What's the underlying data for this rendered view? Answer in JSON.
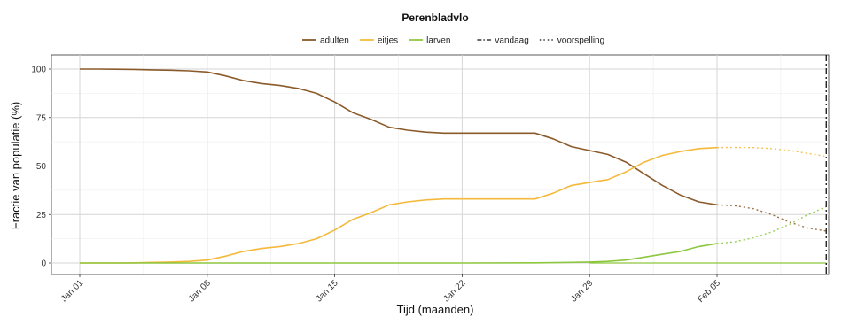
{
  "chart_data": {
    "type": "line",
    "title": "Perenbladvlo",
    "xlabel": "Tijd (maanden)",
    "ylabel": "Fractie van populatie (%)",
    "ylim": [
      0,
      100
    ],
    "xlim": [
      "2024-01-01",
      "2024-02-12"
    ],
    "grid": true,
    "legend_position": "top",
    "x_ticks": [
      "2024-01-01",
      "2024-01-08",
      "2024-01-15",
      "2024-01-22",
      "2024-01-29",
      "2024-02-05"
    ],
    "x_tick_labels": [
      "Jan 01",
      "Jan 08",
      "Jan 15",
      "Jan 22",
      "Jan 29",
      "Feb 05"
    ],
    "y_ticks": [
      0,
      25,
      50,
      75,
      100
    ],
    "y_tick_labels": [
      "0",
      "25",
      "50",
      "75",
      "100"
    ],
    "today": "2024-02-11",
    "series": [
      {
        "name": "adulten",
        "color": "#8B5A2B",
        "observed": [
          [
            "2024-01-01",
            100
          ],
          [
            "2024-01-02",
            100
          ],
          [
            "2024-01-03",
            99.9
          ],
          [
            "2024-01-04",
            99.8
          ],
          [
            "2024-01-05",
            99.6
          ],
          [
            "2024-01-06",
            99.4
          ],
          [
            "2024-01-07",
            99.1
          ],
          [
            "2024-01-08",
            98.5
          ],
          [
            "2024-01-09",
            96.5
          ],
          [
            "2024-01-10",
            94
          ],
          [
            "2024-01-11",
            92.5
          ],
          [
            "2024-01-12",
            91.5
          ],
          [
            "2024-01-13",
            90
          ],
          [
            "2024-01-14",
            87.5
          ],
          [
            "2024-01-15",
            83
          ],
          [
            "2024-01-16",
            77.5
          ],
          [
            "2024-01-17",
            74
          ],
          [
            "2024-01-18",
            70
          ],
          [
            "2024-01-19",
            68.5
          ],
          [
            "2024-01-20",
            67.5
          ],
          [
            "2024-01-21",
            67
          ],
          [
            "2024-01-22",
            67
          ],
          [
            "2024-01-23",
            67
          ],
          [
            "2024-01-24",
            67
          ],
          [
            "2024-01-25",
            67
          ],
          [
            "2024-01-26",
            67
          ],
          [
            "2024-01-27",
            64
          ],
          [
            "2024-01-28",
            60
          ],
          [
            "2024-01-29",
            58
          ],
          [
            "2024-01-30",
            56
          ],
          [
            "2024-01-31",
            52
          ],
          [
            "2024-02-01",
            46
          ],
          [
            "2024-02-02",
            40
          ],
          [
            "2024-02-03",
            35
          ],
          [
            "2024-02-04",
            31.5
          ],
          [
            "2024-02-05",
            30
          ]
        ],
        "forecast": [
          [
            "2024-02-05",
            30
          ],
          [
            "2024-02-06",
            29.5
          ],
          [
            "2024-02-07",
            28
          ],
          [
            "2024-02-08",
            25
          ],
          [
            "2024-02-09",
            21
          ],
          [
            "2024-02-10",
            18
          ],
          [
            "2024-02-11",
            16.5
          ]
        ]
      },
      {
        "name": "eitjes",
        "color": "#F4B93A",
        "observed": [
          [
            "2024-01-01",
            0
          ],
          [
            "2024-01-02",
            0
          ],
          [
            "2024-01-03",
            0
          ],
          [
            "2024-01-04",
            0.1
          ],
          [
            "2024-01-05",
            0.3
          ],
          [
            "2024-01-06",
            0.5
          ],
          [
            "2024-01-07",
            0.8
          ],
          [
            "2024-01-08",
            1.5
          ],
          [
            "2024-01-09",
            3.5
          ],
          [
            "2024-01-10",
            6
          ],
          [
            "2024-01-11",
            7.5
          ],
          [
            "2024-01-12",
            8.5
          ],
          [
            "2024-01-13",
            10
          ],
          [
            "2024-01-14",
            12.5
          ],
          [
            "2024-01-15",
            17
          ],
          [
            "2024-01-16",
            22.5
          ],
          [
            "2024-01-17",
            26
          ],
          [
            "2024-01-18",
            30
          ],
          [
            "2024-01-19",
            31.5
          ],
          [
            "2024-01-20",
            32.5
          ],
          [
            "2024-01-21",
            33
          ],
          [
            "2024-01-22",
            33
          ],
          [
            "2024-01-23",
            33
          ],
          [
            "2024-01-24",
            33
          ],
          [
            "2024-01-25",
            33
          ],
          [
            "2024-01-26",
            33
          ],
          [
            "2024-01-27",
            36
          ],
          [
            "2024-01-28",
            40
          ],
          [
            "2024-01-29",
            41.5
          ],
          [
            "2024-01-30",
            43
          ],
          [
            "2024-01-31",
            47
          ],
          [
            "2024-02-01",
            52
          ],
          [
            "2024-02-02",
            55.5
          ],
          [
            "2024-02-03",
            57.5
          ],
          [
            "2024-02-04",
            59
          ],
          [
            "2024-02-05",
            59.5
          ]
        ],
        "forecast": [
          [
            "2024-02-05",
            59.5
          ],
          [
            "2024-02-06",
            59.6
          ],
          [
            "2024-02-07",
            59.5
          ],
          [
            "2024-02-08",
            59
          ],
          [
            "2024-02-09",
            58
          ],
          [
            "2024-02-10",
            56.5
          ],
          [
            "2024-02-11",
            55
          ]
        ]
      },
      {
        "name": "larven",
        "color": "#8DC63F",
        "observed": [
          [
            "2024-01-01",
            0
          ],
          [
            "2024-01-08",
            0
          ],
          [
            "2024-01-15",
            0
          ],
          [
            "2024-01-22",
            0
          ],
          [
            "2024-01-26",
            0.1
          ],
          [
            "2024-01-28",
            0.3
          ],
          [
            "2024-01-29",
            0.5
          ],
          [
            "2024-01-30",
            0.8
          ],
          [
            "2024-01-31",
            1.5
          ],
          [
            "2024-02-01",
            3
          ],
          [
            "2024-02-02",
            4.5
          ],
          [
            "2024-02-03",
            6
          ],
          [
            "2024-02-04",
            8.5
          ],
          [
            "2024-02-05",
            10
          ]
        ],
        "forecast": [
          [
            "2024-02-05",
            10
          ],
          [
            "2024-02-06",
            11
          ],
          [
            "2024-02-07",
            13
          ],
          [
            "2024-02-08",
            16
          ],
          [
            "2024-02-09",
            20
          ],
          [
            "2024-02-10",
            25
          ],
          [
            "2024-02-11",
            29
          ]
        ],
        "flat_extension": [
          [
            "2024-01-29",
            0
          ],
          [
            "2024-02-11",
            0
          ]
        ]
      }
    ],
    "legend": {
      "series_labels": [
        "adulten",
        "eitjes",
        "larven"
      ],
      "today_label": "vandaag",
      "forecast_label": "voorspelling"
    }
  }
}
